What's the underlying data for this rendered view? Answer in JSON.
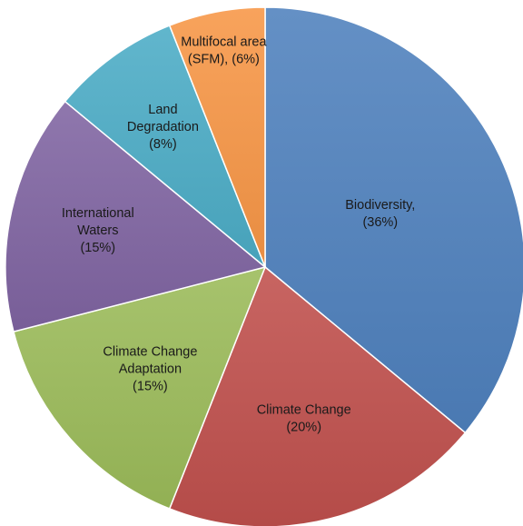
{
  "chart_data": {
    "type": "pie",
    "title": "",
    "slices": [
      {
        "label_lines": [
          "Biodiversity,",
          "(36%)"
        ],
        "value": 36,
        "color": "#4f81bd"
      },
      {
        "label_lines": [
          "Climate Change",
          "(20%)"
        ],
        "value": 20,
        "color": "#c0504d"
      },
      {
        "label_lines": [
          "Climate Change",
          "Adaptation",
          "(15%)"
        ],
        "value": 15,
        "color": "#9bbb59"
      },
      {
        "label_lines": [
          "International",
          "Waters",
          "(15%)"
        ],
        "value": 15,
        "color": "#8064a2"
      },
      {
        "label_lines": [
          "Land",
          "Degradation",
          "(8%)"
        ],
        "value": 8,
        "color": "#4bacc6"
      },
      {
        "label_lines": [
          "Multifocal area",
          "(SFM), (6%)"
        ],
        "value": 6,
        "color": "#f79646"
      }
    ]
  }
}
